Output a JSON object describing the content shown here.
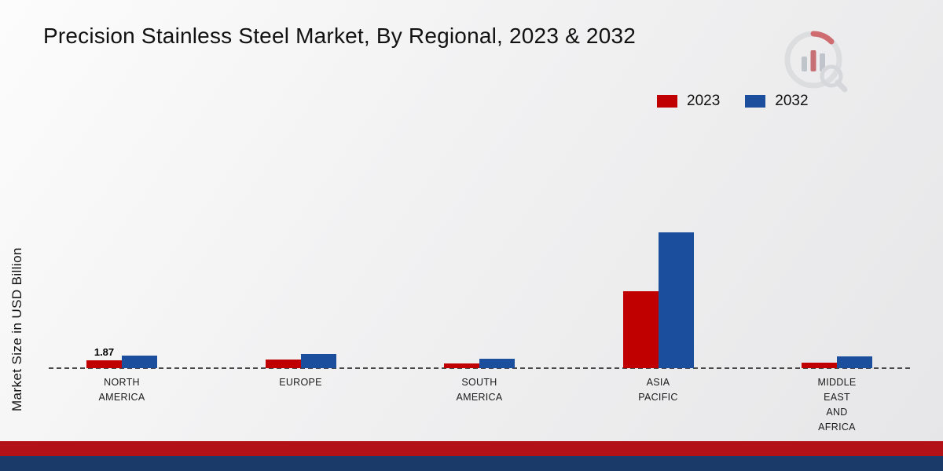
{
  "title": "Precision Stainless Steel Market, By Regional, 2023 & 2032",
  "legend": {
    "items": [
      {
        "label": "2023",
        "color": "#c00000"
      },
      {
        "label": "2032",
        "color": "#1b4f9e"
      }
    ]
  },
  "chart_data": {
    "type": "bar",
    "title": "Precision Stainless Steel Market, By Regional, 2023 & 2032",
    "ylabel": "Market Size in USD Billion",
    "xlabel": "",
    "categories": [
      "NORTH AMERICA",
      "EUROPE",
      "SOUTH AMERICA",
      "ASIA PACIFIC",
      "MIDDLE EAST AND AFRICA"
    ],
    "series": [
      {
        "name": "2023",
        "color": "#c00000",
        "values": [
          1.87,
          2.1,
          1.1,
          18.5,
          1.3
        ]
      },
      {
        "name": "2032",
        "color": "#1b4f9e",
        "values": [
          3.1,
          3.3,
          2.3,
          32.5,
          2.8
        ]
      }
    ],
    "data_labels": [
      {
        "series_index": 0,
        "category_index": 0,
        "text": "1.87"
      }
    ],
    "ylim": [
      0,
      35
    ],
    "grid": false,
    "baseline_style": "dashed",
    "legend_position": "top-right"
  },
  "footer": {
    "red_band_color": "#b11117",
    "navy_band_color": "#1a3a69"
  }
}
